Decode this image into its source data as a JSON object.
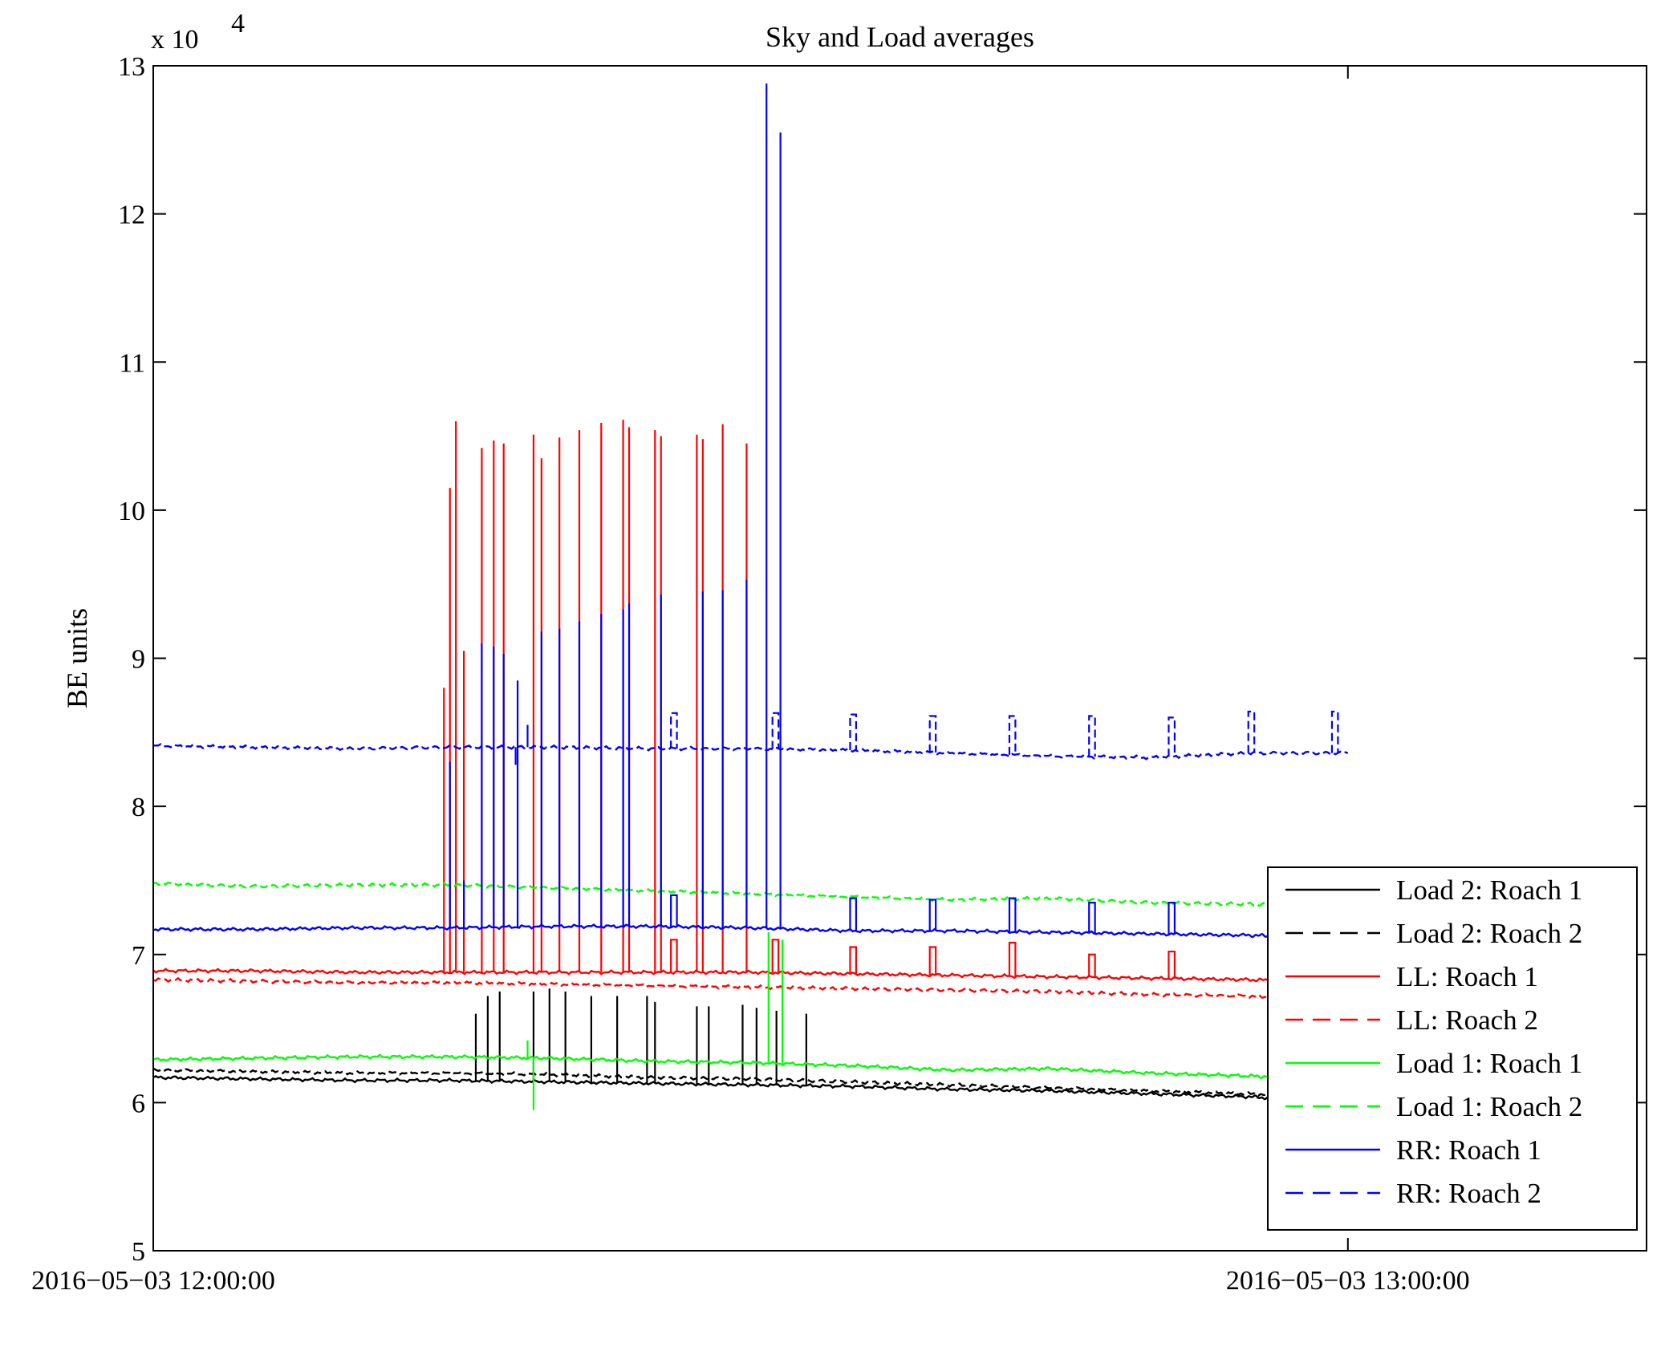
{
  "chart_data": {
    "type": "line",
    "title": "Sky and Load averages",
    "xlabel": "",
    "ylabel": "BE units",
    "y_exponent_label": "x 10",
    "y_exponent_power": "4",
    "x_unit": "minutes after 2016-05-03 12:00:00",
    "xlim": [
      0,
      75
    ],
    "ylim": [
      5,
      13
    ],
    "yticks": [
      5,
      6,
      7,
      8,
      9,
      10,
      11,
      12,
      13
    ],
    "xticks": [
      {
        "value": 0,
        "label": "2016−05−03 12:00:00"
      },
      {
        "value": 60,
        "label": "2016−05−03 13:00:00"
      }
    ],
    "grid": false,
    "legend_position": "bottom-right",
    "series": [
      {
        "name": "Load 2: Roach 1",
        "color": "#000000",
        "dash": "solid",
        "x": [
          0,
          5,
          10,
          15,
          20,
          25,
          30,
          35,
          40,
          45,
          50,
          55,
          57.5
        ],
        "y": [
          6.17,
          6.16,
          6.15,
          6.15,
          6.14,
          6.13,
          6.12,
          6.11,
          6.09,
          6.08,
          6.06,
          6.04,
          6.02
        ],
        "spikes": [
          {
            "x": 16.2,
            "y": 6.6
          },
          {
            "x": 16.8,
            "y": 6.72
          },
          {
            "x": 17.4,
            "y": 6.75
          },
          {
            "x": 19.1,
            "y": 6.75
          },
          {
            "x": 19.9,
            "y": 6.77
          },
          {
            "x": 20.7,
            "y": 6.75
          },
          {
            "x": 22.0,
            "y": 6.72
          },
          {
            "x": 23.3,
            "y": 6.72
          },
          {
            "x": 24.8,
            "y": 6.72
          },
          {
            "x": 25.2,
            "y": 6.68
          },
          {
            "x": 27.3,
            "y": 6.65
          },
          {
            "x": 27.9,
            "y": 6.65
          },
          {
            "x": 29.6,
            "y": 6.66
          },
          {
            "x": 30.3,
            "y": 6.64
          },
          {
            "x": 31.3,
            "y": 6.62
          },
          {
            "x": 32.8,
            "y": 6.6
          }
        ]
      },
      {
        "name": "Load 2: Roach 2",
        "color": "#000000",
        "dash": "dashed",
        "x": [
          0,
          5,
          10,
          15,
          20,
          25,
          30,
          35,
          40,
          45,
          50,
          55,
          57.5
        ],
        "y": [
          6.22,
          6.21,
          6.2,
          6.2,
          6.19,
          6.17,
          6.16,
          6.14,
          6.12,
          6.1,
          6.08,
          6.06,
          6.04
        ],
        "spikes": []
      },
      {
        "name": "LL: Roach 1",
        "color": "#ff0000",
        "dash": "solid",
        "x": [
          0,
          5,
          10,
          15,
          20,
          25,
          30,
          35,
          40,
          45,
          50,
          55,
          57.5
        ],
        "y": [
          6.89,
          6.89,
          6.88,
          6.88,
          6.88,
          6.88,
          6.88,
          6.87,
          6.86,
          6.85,
          6.84,
          6.83,
          6.82
        ],
        "spikes": [
          {
            "x": 14.6,
            "y": 8.8
          },
          {
            "x": 14.9,
            "y": 10.15
          },
          {
            "x": 15.2,
            "y": 10.6
          },
          {
            "x": 15.6,
            "y": 9.05
          },
          {
            "x": 16.5,
            "y": 10.42
          },
          {
            "x": 17.1,
            "y": 10.47
          },
          {
            "x": 17.6,
            "y": 10.45
          },
          {
            "x": 19.1,
            "y": 10.51
          },
          {
            "x": 19.5,
            "y": 10.35
          },
          {
            "x": 20.4,
            "y": 10.49
          },
          {
            "x": 21.4,
            "y": 10.54
          },
          {
            "x": 22.5,
            "y": 10.59
          },
          {
            "x": 23.6,
            "y": 10.61
          },
          {
            "x": 23.9,
            "y": 10.56
          },
          {
            "x": 25.2,
            "y": 10.54
          },
          {
            "x": 25.5,
            "y": 10.5
          },
          {
            "x": 27.3,
            "y": 10.51
          },
          {
            "x": 27.6,
            "y": 10.48
          },
          {
            "x": 28.6,
            "y": 10.58
          },
          {
            "x": 29.8,
            "y": 10.45
          }
        ],
        "steps": [
          {
            "x": 26.0,
            "w": 0.3,
            "y": 7.1
          },
          {
            "x": 31.1,
            "w": 0.3,
            "y": 7.1
          },
          {
            "x": 35.0,
            "w": 0.3,
            "y": 7.05
          },
          {
            "x": 39.0,
            "w": 0.3,
            "y": 7.05
          },
          {
            "x": 43.0,
            "w": 0.3,
            "y": 7.08
          },
          {
            "x": 47.0,
            "w": 0.3,
            "y": 7.0
          },
          {
            "x": 51.0,
            "w": 0.3,
            "y": 7.02
          }
        ]
      },
      {
        "name": "LL: Roach 2",
        "color": "#ff0000",
        "dash": "dashed",
        "x": [
          0,
          5,
          10,
          15,
          20,
          25,
          30,
          35,
          40,
          45,
          50,
          55,
          57.5
        ],
        "y": [
          6.83,
          6.82,
          6.81,
          6.81,
          6.8,
          6.79,
          6.78,
          6.77,
          6.76,
          6.75,
          6.73,
          6.72,
          6.7
        ],
        "spikes": []
      },
      {
        "name": "Load 1: Roach 1",
        "color": "#00ff00",
        "dash": "solid",
        "x": [
          0,
          5,
          10,
          15,
          20,
          25,
          30,
          35,
          40,
          45,
          50,
          55,
          57.5
        ],
        "y": [
          6.29,
          6.3,
          6.31,
          6.31,
          6.3,
          6.28,
          6.27,
          6.25,
          6.22,
          6.23,
          6.2,
          6.18,
          6.17
        ],
        "spikes": [
          {
            "x": 18.8,
            "y": 6.42
          },
          {
            "x": 19.1,
            "y": 5.95
          },
          {
            "x": 30.9,
            "y": 7.15
          },
          {
            "x": 31.6,
            "y": 7.1
          }
        ]
      },
      {
        "name": "Load 1: Roach 2",
        "color": "#00ff00",
        "dash": "dashed",
        "x": [
          0,
          5,
          10,
          15,
          20,
          25,
          30,
          35,
          40,
          45,
          50,
          55,
          57.5
        ],
        "y": [
          7.48,
          7.46,
          7.47,
          7.47,
          7.45,
          7.43,
          7.41,
          7.39,
          7.37,
          7.38,
          7.35,
          7.34,
          7.33
        ],
        "spikes": []
      },
      {
        "name": "RR: Roach 1",
        "color": "#0000ff",
        "dash": "solid",
        "x": [
          0,
          5,
          10,
          15,
          20,
          25,
          30,
          35,
          40,
          45,
          50,
          55,
          57.5
        ],
        "y": [
          7.17,
          7.17,
          7.18,
          7.18,
          7.19,
          7.19,
          7.18,
          7.16,
          7.16,
          7.15,
          7.14,
          7.13,
          7.12
        ],
        "spikes": [
          {
            "x": 14.9,
            "y": 8.3
          },
          {
            "x": 15.6,
            "y": 7.5
          },
          {
            "x": 16.5,
            "y": 9.1
          },
          {
            "x": 17.1,
            "y": 9.08
          },
          {
            "x": 17.6,
            "y": 9.03
          },
          {
            "x": 18.3,
            "y": 8.85
          },
          {
            "x": 19.5,
            "y": 9.18
          },
          {
            "x": 20.4,
            "y": 9.2
          },
          {
            "x": 21.4,
            "y": 9.25
          },
          {
            "x": 22.5,
            "y": 9.3
          },
          {
            "x": 23.6,
            "y": 9.33
          },
          {
            "x": 23.9,
            "y": 9.37
          },
          {
            "x": 25.5,
            "y": 9.43
          },
          {
            "x": 27.6,
            "y": 9.45
          },
          {
            "x": 28.6,
            "y": 9.46
          },
          {
            "x": 29.8,
            "y": 9.53
          },
          {
            "x": 30.8,
            "y": 12.88
          },
          {
            "x": 31.5,
            "y": 12.55
          }
        ],
        "steps": [
          {
            "x": 26.0,
            "w": 0.3,
            "y": 7.4
          },
          {
            "x": 35.0,
            "w": 0.3,
            "y": 7.38
          },
          {
            "x": 39.0,
            "w": 0.3,
            "y": 7.37
          },
          {
            "x": 43.0,
            "w": 0.3,
            "y": 7.38
          },
          {
            "x": 47.0,
            "w": 0.3,
            "y": 7.35
          },
          {
            "x": 51.0,
            "w": 0.3,
            "y": 7.35
          }
        ]
      },
      {
        "name": "RR: Roach 2",
        "color": "#0000ff",
        "dash": "dashed",
        "x": [
          0,
          5,
          10,
          15,
          20,
          25,
          30,
          35,
          40,
          45,
          50,
          55,
          60
        ],
        "y": [
          8.41,
          8.4,
          8.39,
          8.4,
          8.4,
          8.39,
          8.39,
          8.38,
          8.36,
          8.34,
          8.33,
          8.36,
          8.36
        ],
        "spikes": [
          {
            "x": 18.8,
            "y": 8.55
          },
          {
            "x": 18.2,
            "y": 8.28
          }
        ],
        "steps": [
          {
            "x": 26.0,
            "w": 0.3,
            "y": 8.63
          },
          {
            "x": 31.1,
            "w": 0.3,
            "y": 8.63
          },
          {
            "x": 35.0,
            "w": 0.3,
            "y": 8.62
          },
          {
            "x": 39.0,
            "w": 0.3,
            "y": 8.61
          },
          {
            "x": 43.0,
            "w": 0.3,
            "y": 8.61
          },
          {
            "x": 47.0,
            "w": 0.3,
            "y": 8.61
          },
          {
            "x": 51.0,
            "w": 0.3,
            "y": 8.6
          },
          {
            "x": 55.0,
            "w": 0.3,
            "y": 8.64
          },
          {
            "x": 59.2,
            "w": 0.3,
            "y": 8.64
          }
        ]
      }
    ]
  }
}
